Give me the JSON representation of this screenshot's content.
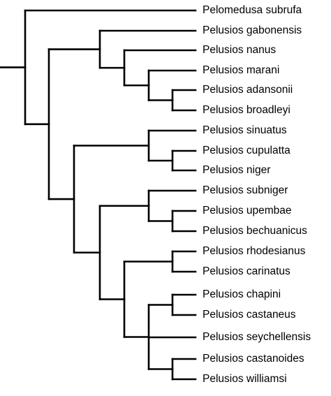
{
  "tree": {
    "taxa": [
      "Pelomedusa subrufa",
      "Pelusios gabonensis",
      "Pelusios nanus",
      "Pelusios marani",
      "Pelusios adansonii",
      "Pelusios broadleyi",
      "Pelusios sinuatus",
      "Pelusios cupulatta",
      "Pelusios niger",
      "Pelusios subniger",
      "Pelusios upembae",
      "Pelusios bechuanicus",
      "Pelusios rhodesianus",
      "Pelusios carinatus",
      "Pelusios chapini",
      "Pelusios castaneus",
      "Pelusios seychellensis",
      "Pelusios castanoides",
      "Pelusios williamsi"
    ],
    "topology": "(Pelomedusa subrufa,((Pelusios gabonensis,(Pelusios nanus,(Pelusios marani,(Pelusios adansonii,Pelusios broadleyi)))),((Pelusios sinuatus,(Pelusios cupulatta,Pelusios niger)),((Pelusios subniger,(Pelusios upembae,Pelusios bechuanicus)),((Pelusios rhodesianus,Pelusios carinatus),((Pelusios chapini,Pelusios castaneus),Pelusios seychellensis,(Pelusios castanoides,Pelusios williamsi)))))))",
    "line_color": "#000000"
  }
}
